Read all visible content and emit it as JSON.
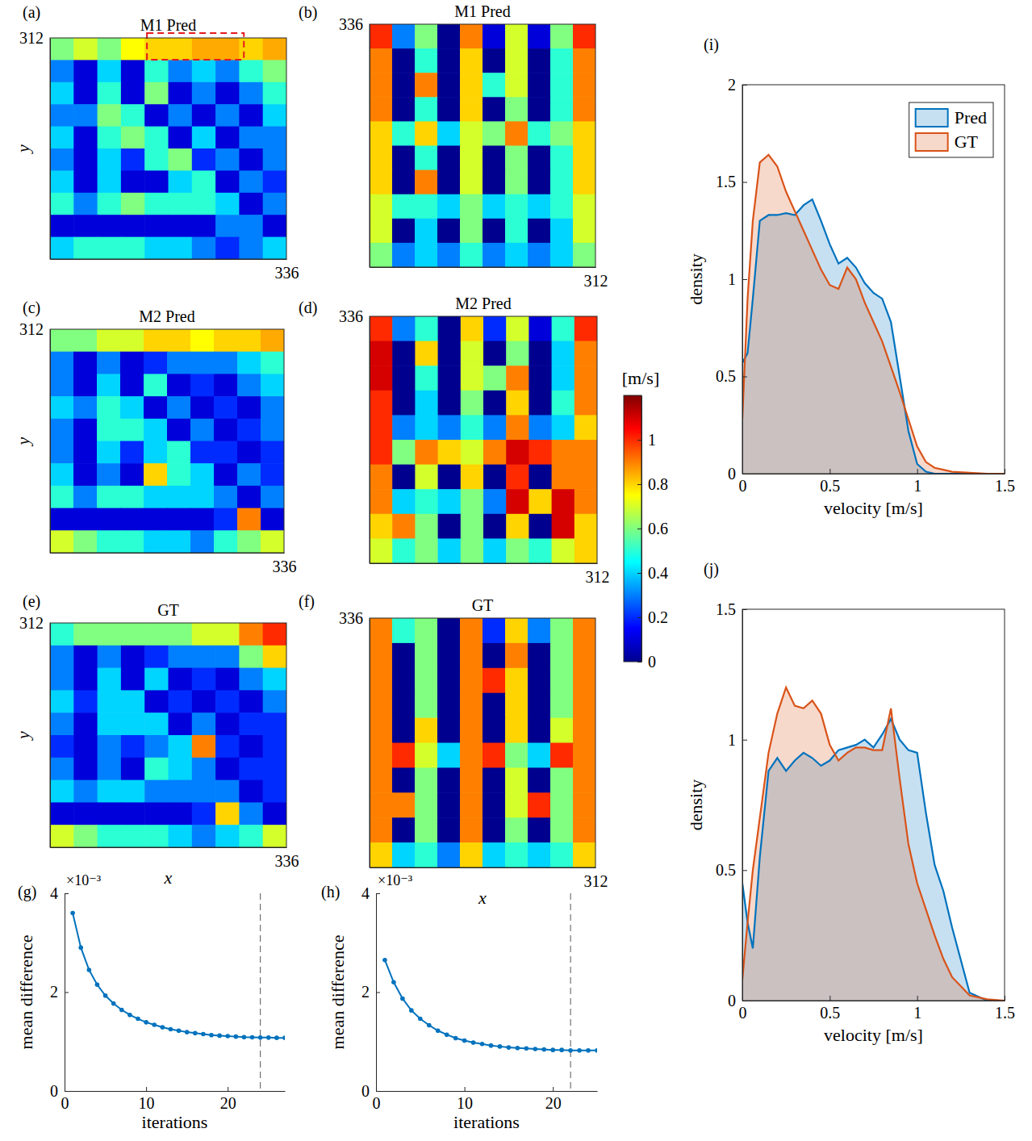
{
  "chart_data": [
    {
      "type": "heatmap",
      "panel_label": "(a)",
      "title": "M1 Pred",
      "y_label": "y",
      "xlim": [
        0,
        336
      ],
      "ylim": [
        0,
        312
      ],
      "xticks": [
        336
      ],
      "yticks": [
        312
      ],
      "cells": [
        [
          0.6,
          0.7,
          0.6,
          0.75,
          0.8,
          0.8,
          0.85,
          0.85,
          0.8,
          0.85
        ],
        [
          0.3,
          0.1,
          0.4,
          0.1,
          0.5,
          0.3,
          0.4,
          0.3,
          0.5,
          0.6
        ],
        [
          0.4,
          0.1,
          0.5,
          0.1,
          0.6,
          0.1,
          0.3,
          0.1,
          0.3,
          0.5
        ],
        [
          0.3,
          0.3,
          0.6,
          0.5,
          0.1,
          0.3,
          0.1,
          0.3,
          0.1,
          0.4
        ],
        [
          0.4,
          0.1,
          0.5,
          0.6,
          0.5,
          0.1,
          0.4,
          0.1,
          0.3,
          0.3
        ],
        [
          0.3,
          0.1,
          0.4,
          0.2,
          0.5,
          0.6,
          0.2,
          0.3,
          0.1,
          0.3
        ],
        [
          0.4,
          0.1,
          0.4,
          0.1,
          0.1,
          0.4,
          0.5,
          0.1,
          0.3,
          0.2
        ],
        [
          0.5,
          0.3,
          0.5,
          0.6,
          0.5,
          0.5,
          0.5,
          0.4,
          0.1,
          0.3
        ],
        [
          0.1,
          0.1,
          0.1,
          0.1,
          0.1,
          0.1,
          0.1,
          0.3,
          0.3,
          0.1
        ],
        [
          0.4,
          0.5,
          0.5,
          0.5,
          0.4,
          0.4,
          0.3,
          0.2,
          0.3,
          0.4
        ]
      ]
    },
    {
      "type": "heatmap",
      "panel_label": "(b)",
      "title": "M1 Pred",
      "xlim": [
        0,
        312
      ],
      "ylim": [
        0,
        336
      ],
      "xticks": [
        312
      ],
      "yticks": [
        336
      ],
      "cells": [
        [
          1.0,
          0.3,
          0.6,
          0,
          0.9,
          0.1,
          0.7,
          0.1,
          0.6,
          1.0
        ],
        [
          0.9,
          0,
          0.5,
          0,
          0.8,
          0,
          0.7,
          0,
          0.5,
          0.9
        ],
        [
          0.9,
          0,
          0.9,
          0,
          0.8,
          0.5,
          0.7,
          0,
          0.5,
          0.9
        ],
        [
          0.9,
          0,
          0.5,
          0,
          0.8,
          0,
          0.6,
          0,
          0.5,
          0.9
        ],
        [
          0.8,
          0.5,
          0.8,
          0.4,
          0.7,
          0.6,
          0.9,
          0.5,
          0.6,
          0.8
        ],
        [
          0.8,
          0,
          0.5,
          0,
          0.7,
          0,
          0.6,
          0,
          0.5,
          0.8
        ],
        [
          0.8,
          0,
          0.9,
          0,
          0.7,
          0,
          0.6,
          0,
          0.5,
          0.8
        ],
        [
          0.7,
          0.5,
          0.5,
          0.4,
          0.6,
          0.4,
          0.5,
          0.4,
          0.5,
          0.7
        ],
        [
          0.7,
          0,
          0.4,
          0,
          0.6,
          0,
          0.5,
          0,
          0.4,
          0.7
        ],
        [
          0.6,
          0.3,
          0.4,
          0.3,
          0.5,
          0.3,
          0.4,
          0.3,
          0.4,
          0.6
        ]
      ]
    },
    {
      "type": "heatmap",
      "panel_label": "(c)",
      "title": "M2 Pred",
      "y_label": "y",
      "xlim": [
        0,
        336
      ],
      "ylim": [
        0,
        312
      ],
      "xticks": [
        336
      ],
      "yticks": [
        312
      ],
      "cells": [
        [
          0.6,
          0.6,
          0.7,
          0.7,
          0.8,
          0.8,
          0.75,
          0.8,
          0.8,
          0.85
        ],
        [
          0.3,
          0.1,
          0.3,
          0.1,
          0.2,
          0.3,
          0.3,
          0.3,
          0.4,
          0.5
        ],
        [
          0.3,
          0.1,
          0.4,
          0.1,
          0.5,
          0.1,
          0.2,
          0.1,
          0.3,
          0.4
        ],
        [
          0.4,
          0.3,
          0.5,
          0.4,
          0.1,
          0.3,
          0.1,
          0.2,
          0.1,
          0.3
        ],
        [
          0.3,
          0.1,
          0.5,
          0.5,
          0.4,
          0.1,
          0.3,
          0.1,
          0.2,
          0.3
        ],
        [
          0.3,
          0.1,
          0.4,
          0.2,
          0.4,
          0.5,
          0.2,
          0.2,
          0.1,
          0.2
        ],
        [
          0.4,
          0.1,
          0.3,
          0.1,
          0.8,
          0.5,
          0.4,
          0.1,
          0.3,
          0.2
        ],
        [
          0.5,
          0.3,
          0.5,
          0.5,
          0.4,
          0.4,
          0.4,
          0.3,
          0.1,
          0.3
        ],
        [
          0.1,
          0.1,
          0.1,
          0.1,
          0.1,
          0.1,
          0.1,
          0.2,
          0.9,
          0.1
        ],
        [
          0.7,
          0.6,
          0.5,
          0.5,
          0.4,
          0.4,
          0.3,
          0.5,
          0.6,
          0.7
        ]
      ]
    },
    {
      "type": "heatmap",
      "panel_label": "(d)",
      "title": "M2 Pred",
      "xlim": [
        0,
        312
      ],
      "ylim": [
        0,
        336
      ],
      "xticks": [
        312
      ],
      "yticks": [
        336
      ],
      "cells": [
        [
          1.0,
          0.3,
          0.5,
          0,
          0.8,
          0.2,
          0.7,
          0.1,
          0.5,
          1.0
        ],
        [
          1.1,
          0,
          0.8,
          0,
          0.7,
          0,
          0.6,
          0,
          0.4,
          0.9
        ],
        [
          1.1,
          0,
          0.5,
          0,
          0.7,
          0.6,
          0.9,
          0,
          0.4,
          0.9
        ],
        [
          1.0,
          0,
          0.4,
          0,
          0.6,
          0,
          0.8,
          0,
          0.5,
          0.9
        ],
        [
          1.0,
          0.3,
          0.4,
          0.3,
          0.5,
          0.3,
          0.9,
          0.3,
          0.4,
          0.8
        ],
        [
          1.0,
          0.6,
          0.9,
          0.8,
          0.7,
          0.9,
          1.1,
          1.0,
          0.9,
          0.9
        ],
        [
          0.9,
          0,
          0.7,
          0,
          0.8,
          0,
          1.0,
          0,
          0.9,
          0.9
        ],
        [
          0.9,
          0.4,
          0.5,
          0.4,
          0.6,
          0.3,
          1.1,
          0.8,
          1.1,
          0.9
        ],
        [
          0.8,
          0.9,
          0.6,
          0,
          0.6,
          0,
          0.8,
          0,
          1.1,
          0.8
        ],
        [
          0.7,
          0.5,
          0.6,
          0.4,
          0.6,
          0.4,
          0.6,
          0.5,
          0.7,
          0.8
        ]
      ]
    },
    {
      "type": "heatmap",
      "panel_label": "(e)",
      "title": "GT",
      "x_label": "x",
      "y_label": "y",
      "xlim": [
        0,
        336
      ],
      "ylim": [
        0,
        312
      ],
      "xticks": [
        336
      ],
      "yticks": [
        312
      ],
      "cells": [
        [
          0.5,
          0.6,
          0.6,
          0.6,
          0.6,
          0.6,
          0.7,
          0.7,
          0.9,
          1.0
        ],
        [
          0.3,
          0.1,
          0.3,
          0.1,
          0.2,
          0.3,
          0.3,
          0.3,
          0.6,
          0.8
        ],
        [
          0.3,
          0.1,
          0.4,
          0.1,
          0.4,
          0.1,
          0.2,
          0.1,
          0.3,
          0.4
        ],
        [
          0.4,
          0.2,
          0.4,
          0.4,
          0.1,
          0.2,
          0.1,
          0.2,
          0.1,
          0.3
        ],
        [
          0.3,
          0.1,
          0.4,
          0.4,
          0.4,
          0.1,
          0.3,
          0.1,
          0.2,
          0.2
        ],
        [
          0.2,
          0.1,
          0.3,
          0.2,
          0.3,
          0.4,
          0.9,
          0.2,
          0.1,
          0.2
        ],
        [
          0.3,
          0.1,
          0.3,
          0.1,
          0.5,
          0.4,
          0.3,
          0.1,
          0.2,
          0.2
        ],
        [
          0.4,
          0.3,
          0.4,
          0.4,
          0.3,
          0.3,
          0.3,
          0.3,
          0.1,
          0.2
        ],
        [
          0.1,
          0.1,
          0.1,
          0.1,
          0.1,
          0.1,
          0.2,
          0.8,
          0.3,
          0.1
        ],
        [
          0.7,
          0.6,
          0.5,
          0.5,
          0.5,
          0.4,
          0.3,
          0.4,
          0.5,
          0.7
        ]
      ]
    },
    {
      "type": "heatmap",
      "panel_label": "(f)",
      "title": "GT",
      "x_label": "x",
      "xlim": [
        0,
        312
      ],
      "ylim": [
        0,
        336
      ],
      "xticks": [
        312
      ],
      "yticks": [
        336
      ],
      "cells": [
        [
          0.9,
          0.5,
          0.6,
          0,
          0.9,
          0.2,
          0.8,
          0.3,
          0.6,
          0.9
        ],
        [
          0.9,
          0,
          0.6,
          0,
          0.9,
          0,
          0.9,
          0,
          0.6,
          0.9
        ],
        [
          0.9,
          0,
          0.6,
          0,
          0.9,
          1.0,
          0.8,
          0,
          0.6,
          0.9
        ],
        [
          0.9,
          0,
          0.6,
          0,
          0.9,
          0,
          0.8,
          0,
          0.6,
          0.9
        ],
        [
          0.9,
          0,
          0.8,
          0,
          0.9,
          0,
          0.8,
          0,
          0.7,
          0.9
        ],
        [
          0.9,
          1.0,
          0.7,
          0.4,
          0.9,
          1.0,
          0.6,
          0.4,
          1.0,
          0.9
        ],
        [
          0.9,
          0,
          0.6,
          0,
          0.9,
          0,
          0.7,
          0,
          0.6,
          0.9
        ],
        [
          0.9,
          0.9,
          0.6,
          0,
          0.9,
          0,
          0.7,
          1.0,
          0.6,
          0.9
        ],
        [
          0.9,
          0,
          0.6,
          0,
          0.9,
          0,
          0.6,
          0,
          0.6,
          0.9
        ],
        [
          0.8,
          0.4,
          0.5,
          0.3,
          0.8,
          0.4,
          0.5,
          0.4,
          0.5,
          0.8
        ]
      ]
    },
    {
      "type": "colorbar",
      "title": "[m/s]",
      "ylim": [
        0,
        1.2
      ],
      "yticks": [
        0,
        0.2,
        0.4,
        0.6,
        0.8,
        1
      ]
    },
    {
      "type": "line",
      "panel_label": "(g)",
      "annotation": "×10⁻³",
      "x_label": "iterations",
      "y_label": "mean difference",
      "x": [
        1,
        2,
        3,
        4,
        5,
        6,
        7,
        8,
        9,
        10,
        11,
        12,
        13,
        14,
        15,
        16,
        17,
        18,
        19,
        20,
        21,
        22,
        23,
        24,
        25,
        26,
        27
      ],
      "values": [
        3.6,
        2.9,
        2.45,
        2.15,
        1.93,
        1.77,
        1.64,
        1.54,
        1.46,
        1.39,
        1.34,
        1.29,
        1.25,
        1.22,
        1.19,
        1.17,
        1.15,
        1.13,
        1.12,
        1.11,
        1.1,
        1.09,
        1.085,
        1.08,
        1.08,
        1.075,
        1.075
      ],
      "vline": 24,
      "color": "#0072bd",
      "marker": "circle",
      "xlim": [
        0,
        27
      ],
      "ylim": [
        0,
        4
      ],
      "xticks": [
        0,
        10,
        20
      ],
      "yticks": [
        0,
        2,
        4
      ]
    },
    {
      "type": "line",
      "panel_label": "(h)",
      "annotation": "×10⁻³",
      "x_label": "iterations",
      "y_label": "mean difference",
      "x": [
        1,
        2,
        3,
        4,
        5,
        6,
        7,
        8,
        9,
        10,
        11,
        12,
        13,
        14,
        15,
        16,
        17,
        18,
        19,
        20,
        21,
        22,
        23,
        24,
        25
      ],
      "values": [
        2.65,
        2.2,
        1.87,
        1.63,
        1.46,
        1.33,
        1.22,
        1.14,
        1.07,
        1.02,
        0.98,
        0.95,
        0.92,
        0.9,
        0.88,
        0.87,
        0.86,
        0.85,
        0.84,
        0.83,
        0.83,
        0.82,
        0.82,
        0.82,
        0.82
      ],
      "vline": 22,
      "color": "#0072bd",
      "marker": "circle",
      "xlim": [
        0,
        25
      ],
      "ylim": [
        0,
        4
      ],
      "xticks": [
        0,
        10,
        20
      ],
      "yticks": [
        0,
        2,
        4
      ]
    },
    {
      "type": "area",
      "panel_label": "(i)",
      "x_label": "velocity [m/s]",
      "y_label": "density",
      "legend": "upper right",
      "x": [
        0,
        0.03,
        0.06,
        0.1,
        0.15,
        0.2,
        0.25,
        0.3,
        0.35,
        0.4,
        0.45,
        0.5,
        0.55,
        0.6,
        0.65,
        0.7,
        0.75,
        0.8,
        0.85,
        0.9,
        0.95,
        1,
        1.05,
        1.1,
        1.15,
        1.2,
        1.3,
        1.4,
        1.5
      ],
      "series": [
        {
          "name": "Pred",
          "color": "#0072bd",
          "values": [
            0.57,
            0.62,
            0.9,
            1.3,
            1.33,
            1.33,
            1.34,
            1.33,
            1.38,
            1.41,
            1.3,
            1.18,
            1.08,
            1.11,
            1.06,
            0.98,
            0.93,
            0.9,
            0.78,
            0.5,
            0.22,
            0.05,
            0.01,
            0,
            0,
            0,
            0,
            0,
            0
          ]
        },
        {
          "name": "GT",
          "color": "#d95319",
          "values": [
            0.28,
            0.9,
            1.3,
            1.6,
            1.64,
            1.58,
            1.45,
            1.35,
            1.25,
            1.15,
            1.05,
            0.97,
            0.95,
            1.06,
            1.0,
            0.88,
            0.78,
            0.68,
            0.55,
            0.42,
            0.28,
            0.14,
            0.06,
            0.03,
            0.02,
            0.01,
            0.005,
            0,
            0
          ]
        }
      ],
      "xlim": [
        0,
        1.5
      ],
      "ylim": [
        0,
        2
      ],
      "xticks": [
        0,
        0.5,
        1,
        1.5
      ],
      "yticks": [
        0,
        0.5,
        1,
        1.5,
        2
      ]
    },
    {
      "type": "area",
      "panel_label": "(j)",
      "x_label": "velocity [m/s]",
      "y_label": "density",
      "x": [
        0,
        0.03,
        0.06,
        0.1,
        0.15,
        0.2,
        0.25,
        0.3,
        0.35,
        0.4,
        0.45,
        0.5,
        0.55,
        0.6,
        0.65,
        0.7,
        0.75,
        0.8,
        0.85,
        0.9,
        0.95,
        1,
        1.05,
        1.1,
        1.15,
        1.2,
        1.3,
        1.4,
        1.5
      ],
      "series": [
        {
          "color": "#0072bd",
          "values": [
            0.45,
            0.3,
            0.2,
            0.55,
            0.88,
            0.93,
            0.88,
            0.92,
            0.95,
            0.93,
            0.9,
            0.92,
            0.96,
            0.97,
            0.98,
            1.0,
            0.97,
            1.02,
            1.08,
            1.0,
            0.96,
            0.95,
            0.72,
            0.52,
            0.42,
            0.28,
            0.03,
            0,
            0
          ]
        },
        {
          "color": "#d95319",
          "values": [
            0.08,
            0.3,
            0.5,
            0.7,
            0.95,
            1.1,
            1.2,
            1.13,
            1.12,
            1.15,
            1.1,
            0.98,
            0.92,
            0.95,
            0.97,
            0.97,
            0.96,
            0.96,
            1.12,
            0.85,
            0.6,
            0.45,
            0.35,
            0.25,
            0.16,
            0.09,
            0.02,
            0.005,
            0
          ]
        }
      ],
      "xlim": [
        0,
        1.5
      ],
      "ylim": [
        0,
        1.5
      ],
      "xticks": [
        0,
        0.5,
        1,
        1.5
      ],
      "yticks": [
        0,
        0.5,
        1,
        1.5
      ]
    }
  ]
}
